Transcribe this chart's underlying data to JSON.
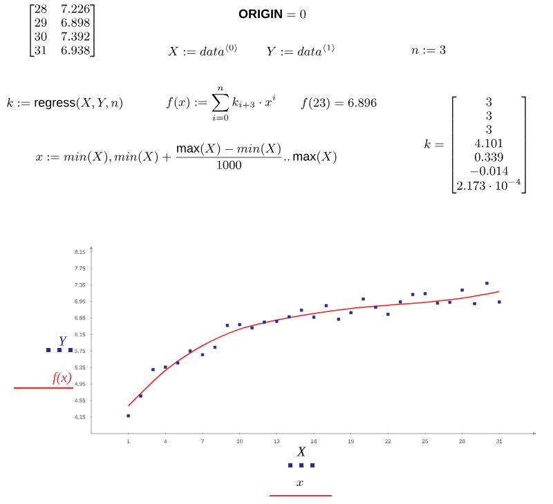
{
  "chart_data": {
    "type": "scatter",
    "x": [
      1,
      2,
      3,
      4,
      5,
      6,
      7,
      8,
      9,
      10,
      11,
      12,
      13,
      14,
      15,
      16,
      17,
      18,
      19,
      20,
      21,
      22,
      23,
      24,
      25,
      26,
      27,
      28,
      29,
      30,
      31
    ],
    "series": [
      {
        "name": "Y",
        "color": "#2b2b9e",
        "marker": "square",
        "values": [
          4.18,
          4.66,
          5.3,
          5.36,
          5.46,
          5.75,
          5.66,
          5.84,
          6.37,
          6.39,
          6.31,
          6.45,
          6.47,
          6.58,
          6.74,
          6.57,
          6.85,
          6.52,
          6.68,
          7.01,
          6.81,
          6.64,
          6.94,
          7.12,
          7.14,
          6.91,
          6.93,
          7.226,
          6.898,
          7.392,
          6.938
        ]
      },
      {
        "name": "f(x)",
        "type": "line",
        "color": "#e03a3a",
        "marker": "none",
        "line_style": "solid",
        "x": [
          1,
          4,
          7,
          10,
          13,
          16,
          19,
          22,
          25,
          28,
          31
        ],
        "values": [
          4.42,
          5.28,
          5.88,
          6.28,
          6.5,
          6.66,
          6.78,
          6.86,
          6.93,
          7.03,
          7.19
        ]
      }
    ],
    "xlabel": "X",
    "xlim": [
      -2,
      34
    ],
    "ylim": [
      3.75,
      8.3
    ],
    "xticks": [
      1,
      4,
      7,
      10,
      13,
      16,
      19,
      22,
      25,
      28,
      31
    ],
    "yticks": [
      4.15,
      4.55,
      4.95,
      5.35,
      5.75,
      6.15,
      6.55,
      6.95,
      7.35,
      7.75,
      8.15
    ],
    "grid": false,
    "legend": "left",
    "annotations": [
      "\\begin{bmatrix}28&7.226\\\\29&6.898\\\\30&7.392\\\\31&6.938\\end{bmatrix}",
      "\\mathbf{ORIGIN}=0",
      "X:=data^{\\langle 0\\rangle}",
      "Y:=data^{\\langle 1\\rangle}",
      "n:=3",
      "k:=\\mathrm{regress}(X,Y,n)",
      "f(x):=\\sum_{i=0}^{n}k_{i+3}\\cdot x^{i}",
      "f(23)=6.896",
      "x:=min(X),min(X)+\\frac{\\max(X)-min(X)}{1000}..\\max(X)",
      "k=\\begin{bmatrix}3\\\\3\\\\3\\\\4.101\\\\0.339\\\\-0.014\\\\2.173\\cdot 10^{-4}\\end{bmatrix}",
      "x"
    ]
  }
}
